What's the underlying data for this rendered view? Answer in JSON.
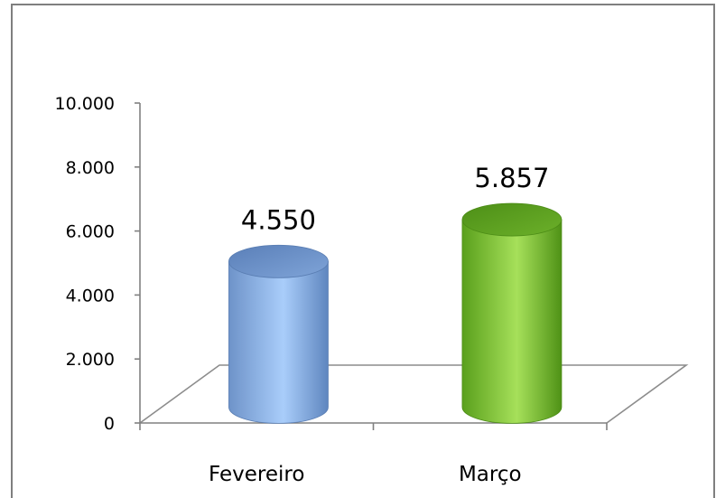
{
  "chart_data": {
    "type": "bar",
    "categories": [
      "Fevereiro",
      "Março"
    ],
    "values": [
      4550,
      5857
    ],
    "data_labels": [
      "4.550",
      "5.857"
    ],
    "title": "",
    "xlabel": "",
    "ylabel": "",
    "ylim": [
      0,
      10000
    ],
    "y_ticks": [
      0,
      2000,
      4000,
      6000,
      8000,
      10000
    ],
    "y_tick_labels": [
      "0",
      "2.000",
      "4.000",
      "6.000",
      "8.000",
      "10.000"
    ],
    "bar_shape": "cylinder",
    "bar_colors": [
      "#7ea6de",
      "#7cc233"
    ],
    "grid": false,
    "legend": "none"
  }
}
